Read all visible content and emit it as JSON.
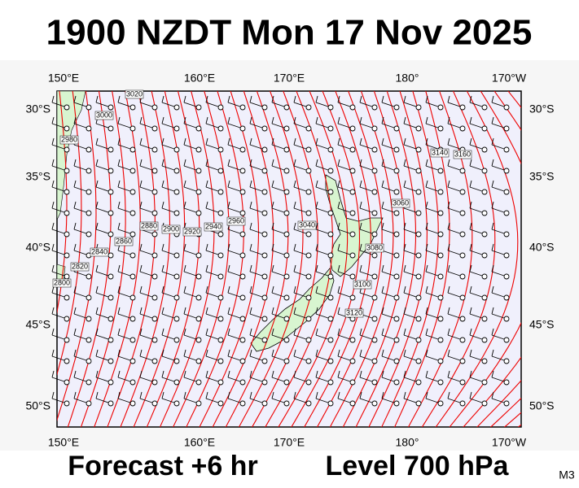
{
  "title": "1900 NZDT Mon 17 Nov 2025",
  "lon_labels": [
    "150°E",
    "160°E",
    "170°E",
    "180°",
    "170°W"
  ],
  "lat_labels": [
    "30°S",
    "35°S",
    "40°S",
    "45°S",
    "50°S"
  ],
  "forecast": "Forecast +6 hr",
  "level": "Level 700 hPa",
  "model": "M3",
  "contour_labels": [
    "3020",
    "3000",
    "2980",
    "2880",
    "2900",
    "2920",
    "2940",
    "2860",
    "2840",
    "2820",
    "2800",
    "2960",
    "3040",
    "3060",
    "3080",
    "3100",
    "3120",
    "3140",
    "3160"
  ]
}
